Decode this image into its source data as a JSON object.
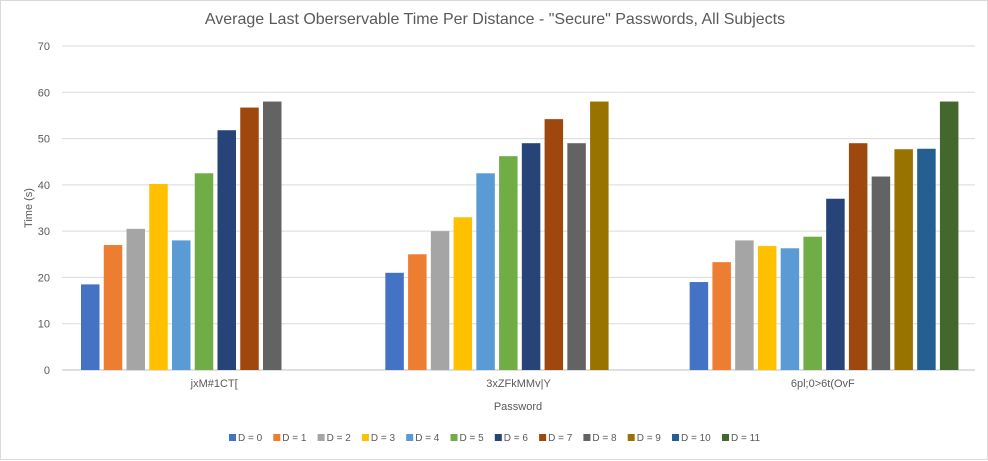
{
  "chart_data": {
    "type": "bar",
    "title": "Average Last Oberservable Time Per Distance - \"Secure\" Passwords, All Subjects",
    "xlabel": "Password",
    "ylabel": "Time (s)",
    "ylim": [
      0,
      70
    ],
    "yticks": [
      "0",
      "10",
      "20",
      "30",
      "40",
      "50",
      "60",
      "70"
    ],
    "grid": true,
    "legend_position": "bottom",
    "categories": [
      "jxM#1CT[",
      "3xZFkMMv|Y",
      "6pl;0>6t(OvF"
    ],
    "series": [
      {
        "name": "D = 0",
        "color": "#4472c4",
        "values": [
          18.5,
          21,
          19
        ]
      },
      {
        "name": "D = 1",
        "color": "#ed7d31",
        "values": [
          27,
          25,
          23.3
        ]
      },
      {
        "name": "D = 2",
        "color": "#a5a5a5",
        "values": [
          30.5,
          30,
          28
        ]
      },
      {
        "name": "D = 3",
        "color": "#ffc000",
        "values": [
          40.2,
          33,
          26.8
        ]
      },
      {
        "name": "D = 4",
        "color": "#5b9bd5",
        "values": [
          28,
          42.5,
          26.3
        ]
      },
      {
        "name": "D = 5",
        "color": "#70ad47",
        "values": [
          42.5,
          46.2,
          28.8
        ]
      },
      {
        "name": "D = 6",
        "color": "#264478",
        "values": [
          51.8,
          49,
          37
        ]
      },
      {
        "name": "D = 7",
        "color": "#9e480e",
        "values": [
          56.7,
          54.2,
          49
        ]
      },
      {
        "name": "D = 8",
        "color": "#636363",
        "values": [
          58,
          49,
          41.8
        ]
      },
      {
        "name": "D = 9",
        "color": "#997300",
        "values": [
          null,
          58,
          47.7
        ]
      },
      {
        "name": "D = 10",
        "color": "#255e91",
        "values": [
          null,
          null,
          47.8
        ]
      },
      {
        "name": "D = 11",
        "color": "#43682b",
        "values": [
          null,
          null,
          58
        ]
      }
    ]
  }
}
